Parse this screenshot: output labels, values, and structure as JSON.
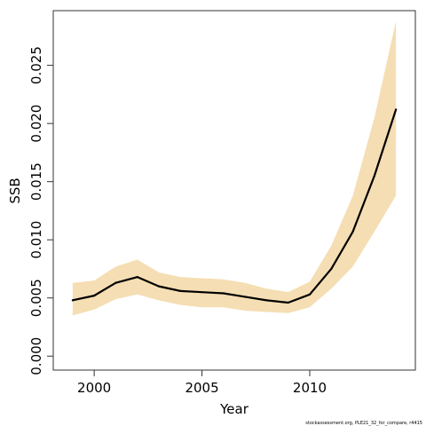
{
  "chart_data": {
    "type": "line",
    "title": "",
    "xlabel": "Year",
    "ylabel": "SSB",
    "x": [
      1999,
      2000,
      2001,
      2002,
      2003,
      2004,
      2005,
      2006,
      2007,
      2008,
      2009,
      2010,
      2011,
      2012,
      2013,
      2014
    ],
    "series": [
      {
        "values": [
          0.0048,
          0.0052,
          0.0063,
          0.0068,
          0.006,
          0.0056,
          0.0055,
          0.0054,
          0.0051,
          0.0048,
          0.0046,
          0.0053,
          0.0075,
          0.0107,
          0.0155,
          0.0212
        ],
        "lower": [
          0.0035,
          0.004,
          0.0049,
          0.0053,
          0.0048,
          0.0044,
          0.0042,
          0.0042,
          0.0039,
          0.0038,
          0.0037,
          0.0042,
          0.0058,
          0.0077,
          0.0107,
          0.0138
        ],
        "upper": [
          0.0063,
          0.0065,
          0.0077,
          0.0083,
          0.0072,
          0.0068,
          0.0067,
          0.0066,
          0.0063,
          0.0058,
          0.0055,
          0.0064,
          0.0095,
          0.0138,
          0.0205,
          0.0288
        ],
        "line_color": "#000000",
        "band_color": "#f5deb3"
      }
    ],
    "xlim": [
      1998.1,
      2014.9
    ],
    "ylim": [
      -0.0012,
      0.0297
    ],
    "x_ticks": [
      "2000",
      "2005",
      "2010"
    ],
    "y_ticks": [
      "0.000",
      "0.005",
      "0.010",
      "0.015",
      "0.020",
      "0.025"
    ],
    "grid": false,
    "legend": "none"
  },
  "footer_text": "stockassessment.org, PLE21_32_for_compare, r4415"
}
